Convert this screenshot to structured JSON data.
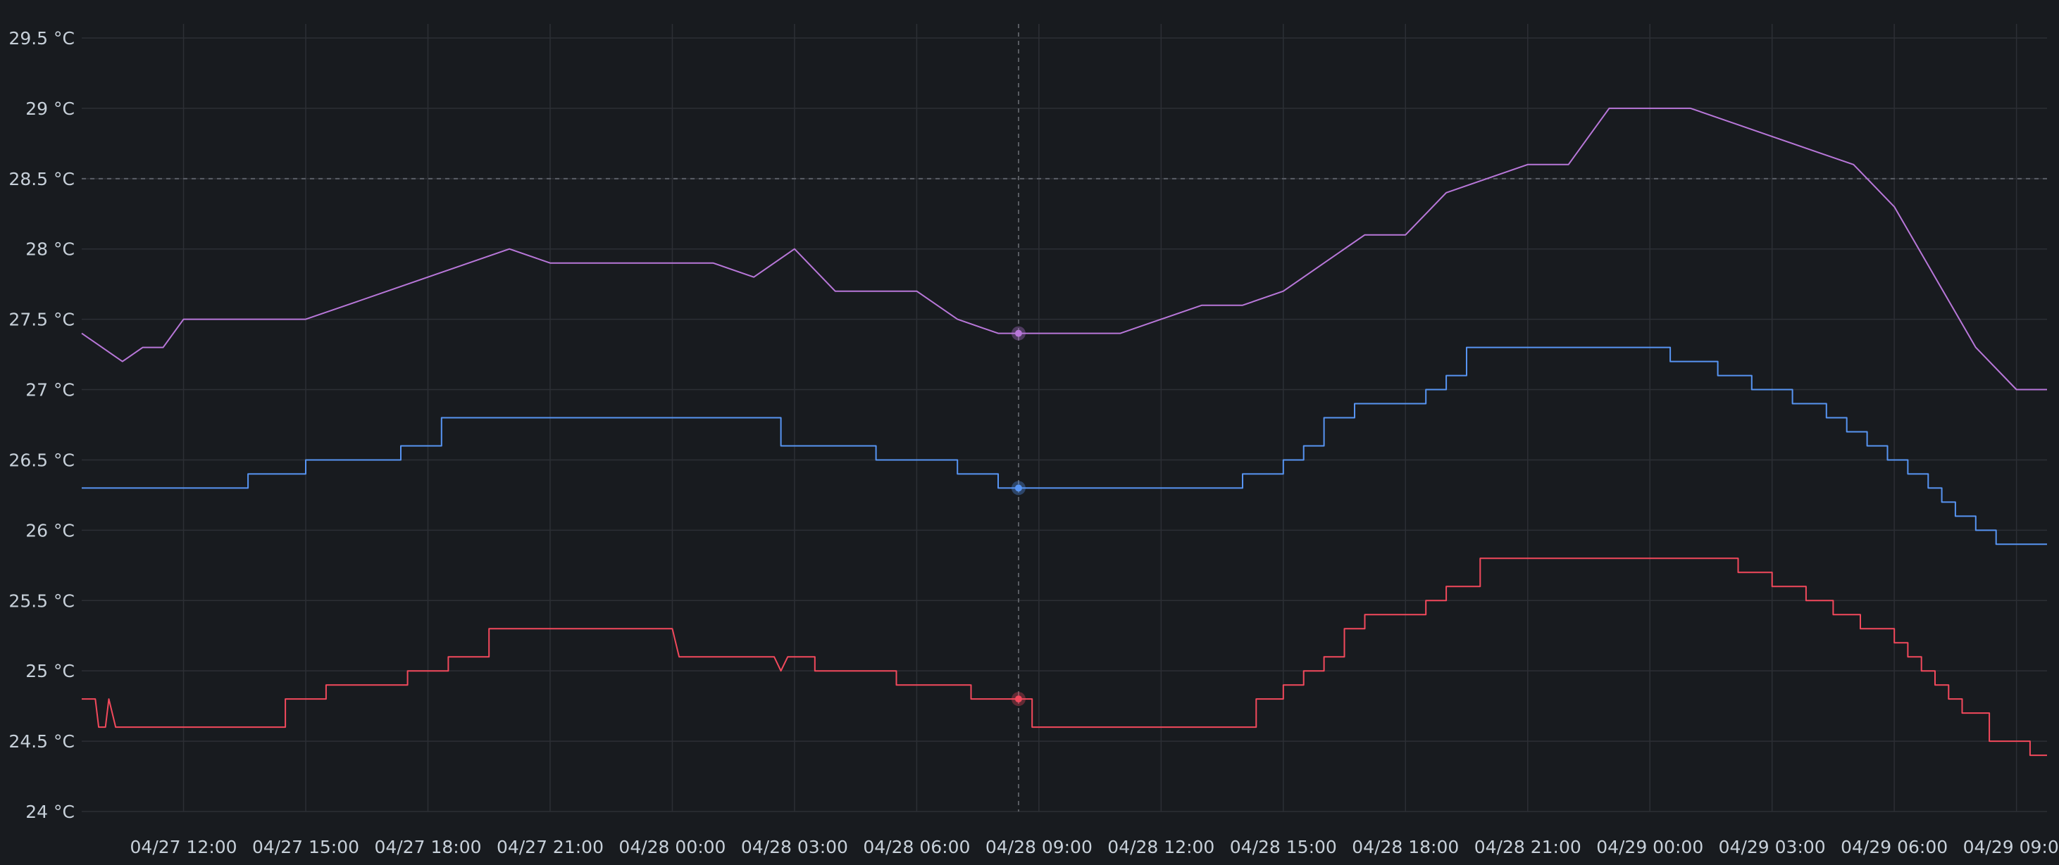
{
  "chart_data": {
    "type": "line",
    "title": "",
    "xlabel": "",
    "ylabel": "",
    "ylim": [
      24,
      29.5
    ],
    "y_ticks": [
      "24 °C",
      "24.5 °C",
      "25 °C",
      "25.5 °C",
      "26 °C",
      "26.5 °C",
      "27 °C",
      "27.5 °C",
      "28 °C",
      "28.5 °C",
      "29 °C",
      "29.5 °C"
    ],
    "x_range": [
      "04/27 09:30",
      "04/29 09:45"
    ],
    "x_ticks": [
      "04/27 12:00",
      "04/27 15:00",
      "04/27 18:00",
      "04/27 21:00",
      "04/28 00:00",
      "04/28 03:00",
      "04/28 06:00",
      "04/28 09:00",
      "04/28 12:00",
      "04/28 15:00",
      "04/28 18:00",
      "04/28 21:00",
      "04/29 00:00",
      "04/29 03:00",
      "04/29 06:00",
      "04/29 09:00"
    ],
    "grid": true,
    "legend": "none",
    "threshold": {
      "value": 28.5,
      "style": "dashed"
    },
    "hover": {
      "time": "04/28 08:30"
    },
    "series": [
      {
        "color": "#b877d9",
        "points": [
          [
            "04/27 09:30",
            27.4
          ],
          [
            "04/27 10:00",
            27.3
          ],
          [
            "04/27 10:30",
            27.2
          ],
          [
            "04/27 11:00",
            27.3
          ],
          [
            "04/27 11:30",
            27.3
          ],
          [
            "04/27 12:00",
            27.5
          ],
          [
            "04/27 13:00",
            27.5
          ],
          [
            "04/27 14:00",
            27.5
          ],
          [
            "04/27 15:00",
            27.5
          ],
          [
            "04/27 16:00",
            27.6
          ],
          [
            "04/27 17:00",
            27.7
          ],
          [
            "04/27 18:00",
            27.8
          ],
          [
            "04/27 19:00",
            27.9
          ],
          [
            "04/27 20:00",
            28.0
          ],
          [
            "04/27 21:00",
            27.9
          ],
          [
            "04/27 22:00",
            27.9
          ],
          [
            "04/27 23:00",
            27.9
          ],
          [
            "04/28 00:00",
            27.9
          ],
          [
            "04/28 01:00",
            27.9
          ],
          [
            "04/28 02:00",
            27.8
          ],
          [
            "04/28 03:00",
            28.0
          ],
          [
            "04/28 04:00",
            27.7
          ],
          [
            "04/28 05:00",
            27.7
          ],
          [
            "04/28 06:00",
            27.7
          ],
          [
            "04/28 07:00",
            27.5
          ],
          [
            "04/28 08:00",
            27.4
          ],
          [
            "04/28 08:30",
            27.4
          ],
          [
            "04/28 09:00",
            27.4
          ],
          [
            "04/28 10:00",
            27.4
          ],
          [
            "04/28 11:00",
            27.4
          ],
          [
            "04/28 12:00",
            27.5
          ],
          [
            "04/28 13:00",
            27.6
          ],
          [
            "04/28 14:00",
            27.6
          ],
          [
            "04/28 15:00",
            27.7
          ],
          [
            "04/28 16:00",
            27.9
          ],
          [
            "04/28 17:00",
            28.1
          ],
          [
            "04/28 18:00",
            28.1
          ],
          [
            "04/28 19:00",
            28.4
          ],
          [
            "04/28 20:00",
            28.5
          ],
          [
            "04/28 21:00",
            28.6
          ],
          [
            "04/28 22:00",
            28.6
          ],
          [
            "04/28 23:00",
            29.0
          ],
          [
            "04/29 00:00",
            29.0
          ],
          [
            "04/29 01:00",
            29.0
          ],
          [
            "04/29 02:00",
            28.9
          ],
          [
            "04/29 03:00",
            28.8
          ],
          [
            "04/29 04:00",
            28.7
          ],
          [
            "04/29 05:00",
            28.6
          ],
          [
            "04/29 06:00",
            28.3
          ],
          [
            "04/29 07:00",
            27.8
          ],
          [
            "04/29 08:00",
            27.3
          ],
          [
            "04/29 09:00",
            27.0
          ],
          [
            "04/29 09:45",
            27.0
          ]
        ]
      },
      {
        "color": "#5794f2",
        "points": [
          [
            "04/27 09:30",
            26.3
          ],
          [
            "04/27 13:35",
            26.3
          ],
          [
            "04/27 13:35",
            26.4
          ],
          [
            "04/27 15:00",
            26.4
          ],
          [
            "04/27 15:00",
            26.5
          ],
          [
            "04/27 17:20",
            26.5
          ],
          [
            "04/27 17:20",
            26.6
          ],
          [
            "04/27 18:20",
            26.6
          ],
          [
            "04/27 18:20",
            26.8
          ],
          [
            "04/28 02:40",
            26.8
          ],
          [
            "04/28 02:40",
            26.6
          ],
          [
            "04/28 05:00",
            26.6
          ],
          [
            "04/28 05:00",
            26.5
          ],
          [
            "04/28 07:00",
            26.5
          ],
          [
            "04/28 07:00",
            26.4
          ],
          [
            "04/28 08:00",
            26.4
          ],
          [
            "04/28 08:00",
            26.3
          ],
          [
            "04/28 14:00",
            26.3
          ],
          [
            "04/28 14:00",
            26.4
          ],
          [
            "04/28 15:00",
            26.4
          ],
          [
            "04/28 15:00",
            26.5
          ],
          [
            "04/28 15:30",
            26.5
          ],
          [
            "04/28 15:30",
            26.6
          ],
          [
            "04/28 16:00",
            26.6
          ],
          [
            "04/28 16:00",
            26.8
          ],
          [
            "04/28 16:45",
            26.8
          ],
          [
            "04/28 16:45",
            26.9
          ],
          [
            "04/28 18:30",
            26.9
          ],
          [
            "04/28 18:30",
            27.0
          ],
          [
            "04/28 19:00",
            27.0
          ],
          [
            "04/28 19:00",
            27.1
          ],
          [
            "04/28 19:30",
            27.1
          ],
          [
            "04/28 19:30",
            27.3
          ],
          [
            "04/29 00:30",
            27.3
          ],
          [
            "04/29 00:30",
            27.2
          ],
          [
            "04/29 01:40",
            27.2
          ],
          [
            "04/29 01:40",
            27.1
          ],
          [
            "04/29 02:30",
            27.1
          ],
          [
            "04/29 02:30",
            27.0
          ],
          [
            "04/29 03:30",
            27.0
          ],
          [
            "04/29 03:30",
            26.9
          ],
          [
            "04/29 04:20",
            26.9
          ],
          [
            "04/29 04:20",
            26.8
          ],
          [
            "04/29 04:50",
            26.8
          ],
          [
            "04/29 04:50",
            26.7
          ],
          [
            "04/29 05:20",
            26.7
          ],
          [
            "04/29 05:20",
            26.6
          ],
          [
            "04/29 05:50",
            26.6
          ],
          [
            "04/29 05:50",
            26.5
          ],
          [
            "04/29 06:20",
            26.5
          ],
          [
            "04/29 06:20",
            26.4
          ],
          [
            "04/29 06:50",
            26.4
          ],
          [
            "04/29 06:50",
            26.3
          ],
          [
            "04/29 07:10",
            26.3
          ],
          [
            "04/29 07:10",
            26.2
          ],
          [
            "04/29 07:30",
            26.2
          ],
          [
            "04/29 07:30",
            26.1
          ],
          [
            "04/29 08:00",
            26.1
          ],
          [
            "04/29 08:00",
            26.0
          ],
          [
            "04/29 08:30",
            26.0
          ],
          [
            "04/29 08:30",
            25.9
          ],
          [
            "04/29 09:45",
            25.9
          ]
        ]
      },
      {
        "color": "#f2495c",
        "points": [
          [
            "04/27 09:30",
            24.8
          ],
          [
            "04/27 09:50",
            24.8
          ],
          [
            "04/27 09:55",
            24.6
          ],
          [
            "04/27 10:05",
            24.6
          ],
          [
            "04/27 10:10",
            24.8
          ],
          [
            "04/27 10:20",
            24.6
          ],
          [
            "04/27 14:30",
            24.6
          ],
          [
            "04/27 14:30",
            24.8
          ],
          [
            "04/27 15:30",
            24.8
          ],
          [
            "04/27 15:30",
            24.9
          ],
          [
            "04/27 17:30",
            24.9
          ],
          [
            "04/27 17:30",
            25.0
          ],
          [
            "04/27 18:30",
            25.0
          ],
          [
            "04/27 18:30",
            25.1
          ],
          [
            "04/27 19:30",
            25.1
          ],
          [
            "04/27 19:30",
            25.3
          ],
          [
            "04/28 00:00",
            25.3
          ],
          [
            "04/28 00:10",
            25.1
          ],
          [
            "04/28 02:30",
            25.1
          ],
          [
            "04/28 02:40",
            25.0
          ],
          [
            "04/28 02:50",
            25.1
          ],
          [
            "04/28 03:30",
            25.1
          ],
          [
            "04/28 03:30",
            25.0
          ],
          [
            "04/28 05:30",
            25.0
          ],
          [
            "04/28 05:30",
            24.9
          ],
          [
            "04/28 07:20",
            24.9
          ],
          [
            "04/28 07:20",
            24.8
          ],
          [
            "04/28 08:50",
            24.8
          ],
          [
            "04/28 08:50",
            24.6
          ],
          [
            "04/28 14:20",
            24.6
          ],
          [
            "04/28 14:20",
            24.8
          ],
          [
            "04/28 15:00",
            24.8
          ],
          [
            "04/28 15:00",
            24.9
          ],
          [
            "04/28 15:30",
            24.9
          ],
          [
            "04/28 15:30",
            25.0
          ],
          [
            "04/28 16:00",
            25.0
          ],
          [
            "04/28 16:00",
            25.1
          ],
          [
            "04/28 16:30",
            25.1
          ],
          [
            "04/28 16:30",
            25.3
          ],
          [
            "04/28 17:00",
            25.3
          ],
          [
            "04/28 17:00",
            25.4
          ],
          [
            "04/28 18:30",
            25.4
          ],
          [
            "04/28 18:30",
            25.5
          ],
          [
            "04/28 19:00",
            25.5
          ],
          [
            "04/28 19:00",
            25.6
          ],
          [
            "04/28 19:50",
            25.6
          ],
          [
            "04/28 19:50",
            25.8
          ],
          [
            "04/29 02:10",
            25.8
          ],
          [
            "04/29 02:10",
            25.7
          ],
          [
            "04/29 03:00",
            25.7
          ],
          [
            "04/29 03:00",
            25.6
          ],
          [
            "04/29 03:50",
            25.6
          ],
          [
            "04/29 03:50",
            25.5
          ],
          [
            "04/29 04:30",
            25.5
          ],
          [
            "04/29 04:30",
            25.4
          ],
          [
            "04/29 05:10",
            25.4
          ],
          [
            "04/29 05:10",
            25.3
          ],
          [
            "04/29 06:00",
            25.3
          ],
          [
            "04/29 06:00",
            25.2
          ],
          [
            "04/29 06:20",
            25.2
          ],
          [
            "04/29 06:20",
            25.1
          ],
          [
            "04/29 06:40",
            25.1
          ],
          [
            "04/29 06:40",
            25.0
          ],
          [
            "04/29 07:00",
            25.0
          ],
          [
            "04/29 07:00",
            24.9
          ],
          [
            "04/29 07:20",
            24.9
          ],
          [
            "04/29 07:20",
            24.8
          ],
          [
            "04/29 07:40",
            24.8
          ],
          [
            "04/29 07:40",
            24.7
          ],
          [
            "04/29 08:20",
            24.7
          ],
          [
            "04/29 08:20",
            24.5
          ],
          [
            "04/29 09:20",
            24.5
          ],
          [
            "04/29 09:20",
            24.4
          ],
          [
            "04/29 09:45",
            24.4
          ]
        ]
      }
    ]
  }
}
